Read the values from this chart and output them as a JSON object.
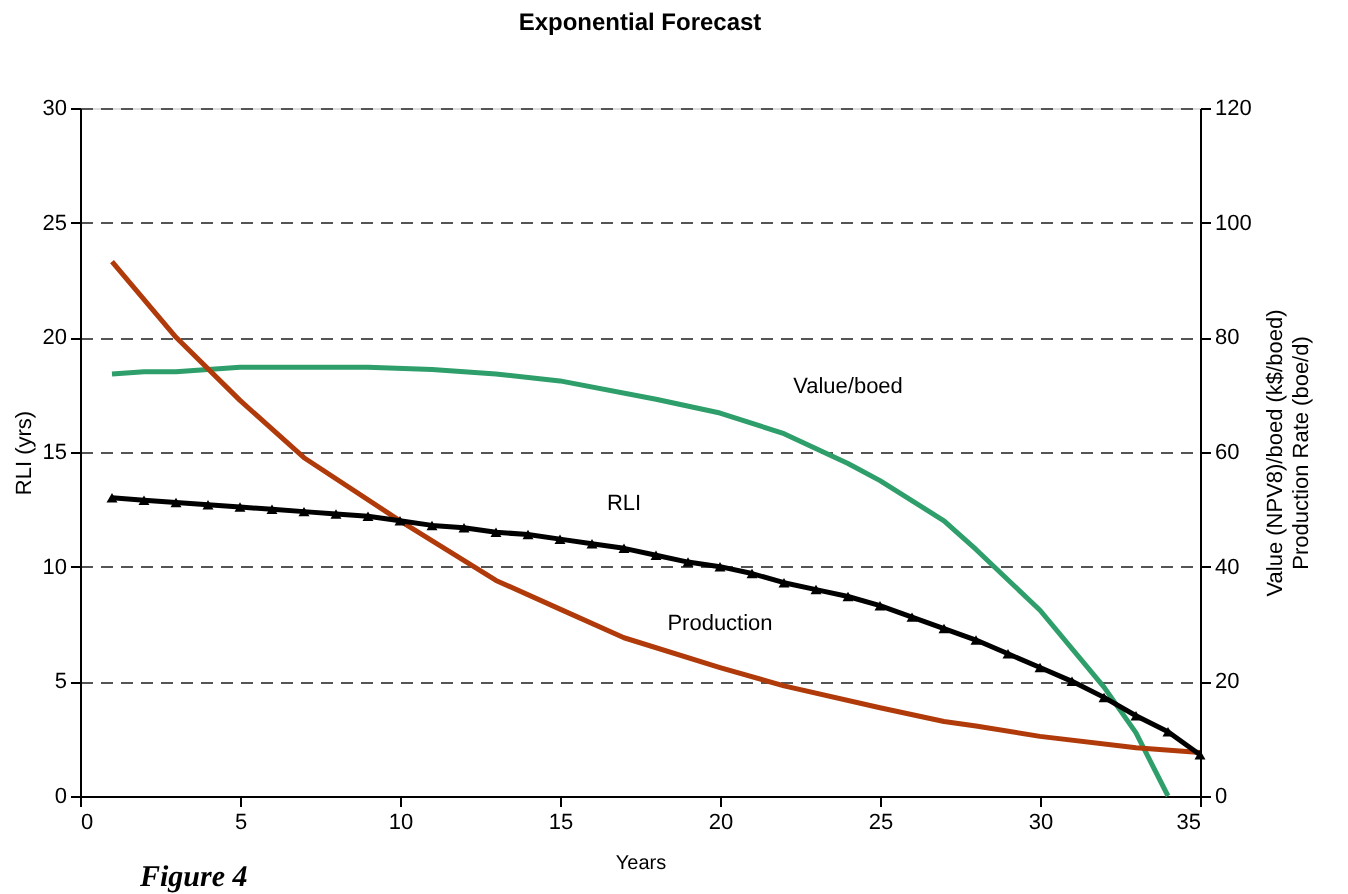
{
  "chart_data": {
    "type": "line",
    "title": "Exponential Forecast",
    "xlabel": "Years",
    "ylabel": "RLI (yrs)",
    "y2label": "Value (NPV8)/boed (k$/boed)\nProduction Rate (boe/d)",
    "xlim": [
      0,
      35
    ],
    "xticks": [
      0,
      5,
      10,
      15,
      20,
      25,
      30,
      35
    ],
    "ylim": [
      0,
      30
    ],
    "yticks": [
      0,
      5,
      10,
      15,
      20,
      25,
      30
    ],
    "y2lim": [
      0,
      120
    ],
    "y2ticks": [
      0,
      20,
      40,
      60,
      80,
      100,
      120
    ],
    "grid": "y",
    "line_style": "solid",
    "annotations": [
      "Figure 4"
    ],
    "series": [
      {
        "name": "RLI",
        "color": "#000000",
        "marker": "triangle",
        "x": [
          1,
          2,
          3,
          4,
          5,
          6,
          7,
          8,
          9,
          10,
          11,
          12,
          13,
          14,
          15,
          16,
          17,
          18,
          19,
          20,
          21,
          22,
          23,
          24,
          25,
          26,
          27,
          28,
          29,
          30,
          31,
          32,
          33,
          34,
          35
        ],
        "values": [
          13.0,
          12.9,
          12.8,
          12.7,
          12.6,
          12.5,
          12.4,
          12.3,
          12.2,
          12.0,
          11.8,
          11.7,
          11.5,
          11.4,
          11.2,
          11.0,
          10.8,
          10.5,
          10.2,
          10.0,
          9.7,
          9.3,
          9.0,
          8.7,
          8.3,
          7.8,
          7.3,
          6.8,
          6.2,
          5.6,
          5.0,
          4.3,
          3.5,
          2.8,
          1.8
        ]
      },
      {
        "name": "Value/boed",
        "color": "#2e9e6a",
        "marker": "none",
        "axis": "y2",
        "x": [
          1,
          2,
          3,
          4,
          5,
          7,
          9,
          11,
          13,
          15,
          18,
          20,
          22,
          24,
          25,
          27,
          28,
          30,
          32,
          33,
          34
        ],
        "values": [
          73.6,
          74,
          74,
          74.4,
          74.8,
          74.8,
          74.8,
          74.4,
          73.6,
          72.4,
          69.2,
          66.8,
          63.2,
          58,
          55,
          48,
          43,
          32.4,
          19,
          11,
          0
        ]
      },
      {
        "name": "Production",
        "color": "#b03a0a",
        "marker": "none",
        "axis": "y2",
        "x": [
          1,
          3,
          5,
          7,
          10,
          13,
          15,
          17,
          20,
          22,
          25,
          27,
          28,
          30,
          33,
          35
        ],
        "values": [
          93.2,
          80,
          69,
          59,
          48,
          37.6,
          32.6,
          27.6,
          22.4,
          19.2,
          15.4,
          13,
          12.2,
          10.4,
          8.4,
          7.6
        ]
      }
    ]
  }
}
